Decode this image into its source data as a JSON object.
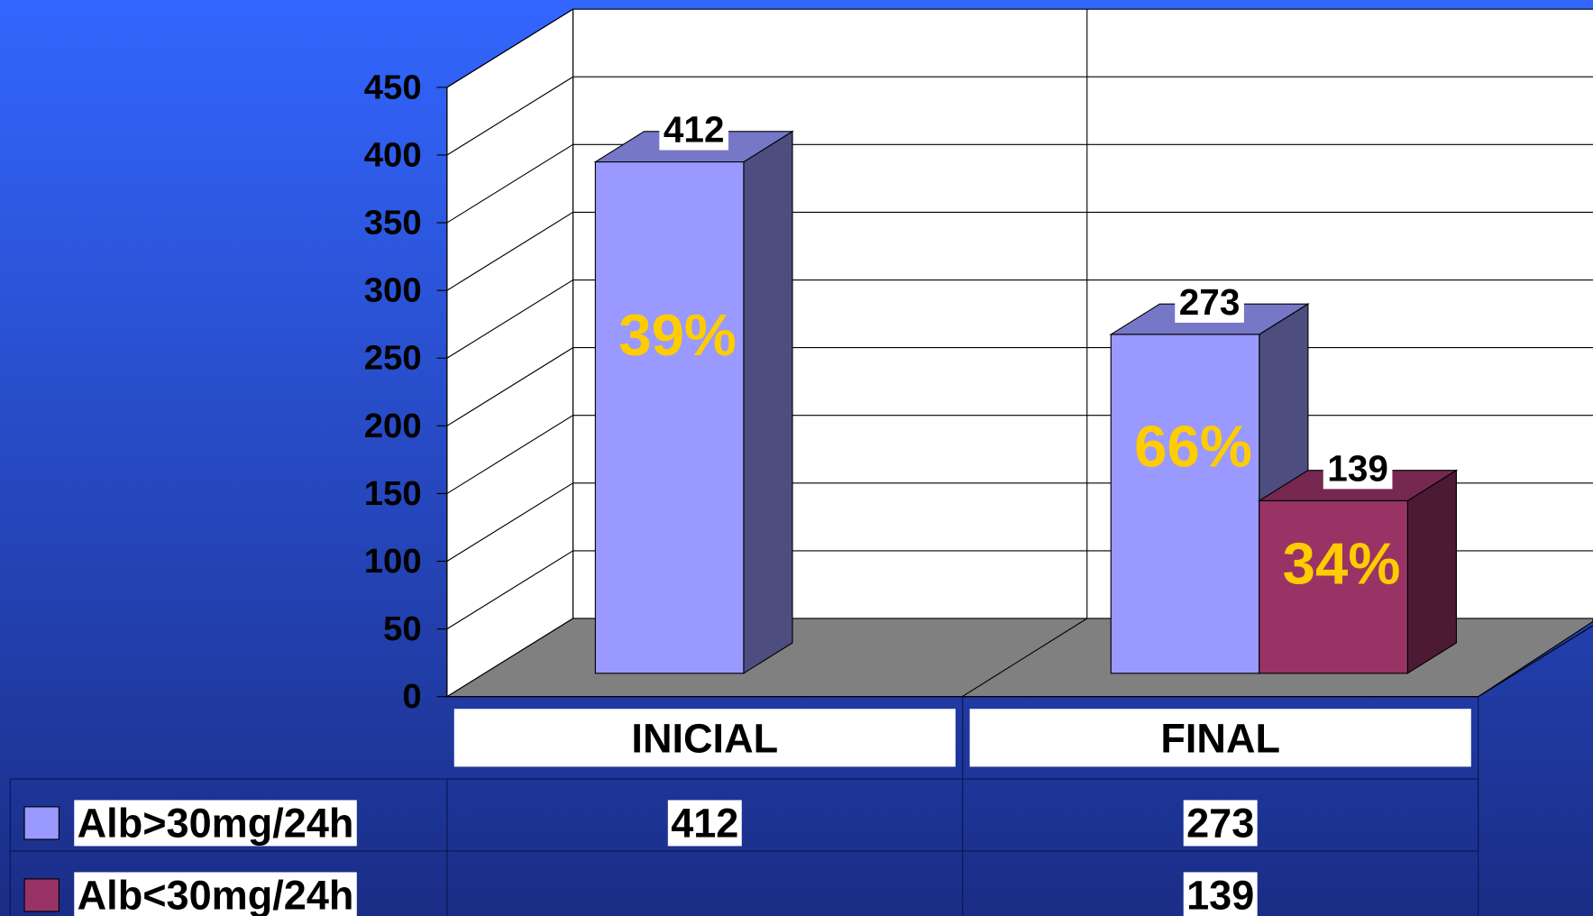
{
  "chart_data": {
    "type": "bar3d",
    "categories": [
      "INICIAL",
      "FINAL"
    ],
    "series": [
      {
        "name": "Alb>30mg/24h",
        "color": "#9999ff",
        "values": [
          412,
          273
        ]
      },
      {
        "name": "Alb<30mg/24h",
        "color": "#993366",
        "values": [
          null,
          139
        ]
      }
    ],
    "annotations": [
      {
        "text": "39%"
      },
      {
        "text": "66%"
      },
      {
        "text": "34%"
      }
    ],
    "annotation_color": "#ffcc00",
    "ylim": [
      0,
      450
    ],
    "yticks": [
      0,
      50,
      100,
      150,
      200,
      250,
      300,
      350,
      400,
      450
    ],
    "grid": true,
    "data_table": true
  }
}
